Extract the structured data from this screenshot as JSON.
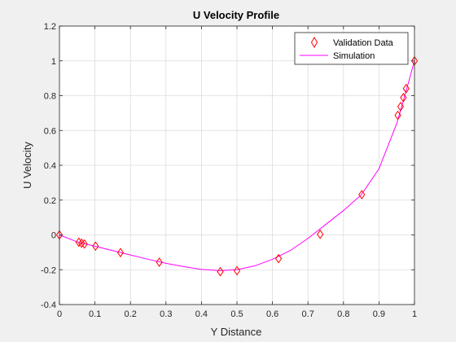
{
  "chart_data": {
    "type": "line",
    "title": "U Velocity Profile",
    "xlabel": "Y Distance",
    "ylabel": "U Velocity",
    "xlim": [
      0,
      1
    ],
    "ylim": [
      -0.4,
      1.2
    ],
    "xticks": [
      0,
      0.1,
      0.2,
      0.3,
      0.4,
      0.5,
      0.6,
      0.7,
      0.8,
      0.9,
      1
    ],
    "xtick_labels": [
      "0",
      "0.1",
      "0.2",
      "0.3",
      "0.4",
      "0.5",
      "0.6",
      "0.7",
      "0.8",
      "0.9",
      "1"
    ],
    "yticks": [
      -0.4,
      -0.2,
      0,
      0.2,
      0.4,
      0.6,
      0.8,
      1,
      1.2
    ],
    "ytick_labels": [
      "-0.4",
      "-0.2",
      "0",
      "0.2",
      "0.4",
      "0.6",
      "0.8",
      "1",
      "1.2"
    ],
    "grid": true,
    "legend_position": "top-right",
    "series": [
      {
        "name": "Validation Data",
        "style": "markers",
        "marker": "diamond",
        "color": "#ff0000",
        "x": [
          0,
          0.0547,
          0.0625,
          0.0703,
          0.1016,
          0.1719,
          0.2813,
          0.4531,
          0.5,
          0.6172,
          0.7344,
          0.8516,
          0.9531,
          0.9609,
          0.9688,
          0.9766,
          1
        ],
        "y": [
          0,
          -0.0419,
          -0.0477,
          -0.052,
          -0.0643,
          -0.1015,
          -0.1566,
          -0.2109,
          -0.2058,
          -0.1364,
          0.0033,
          0.2315,
          0.6872,
          0.7372,
          0.7887,
          0.8412,
          1
        ]
      },
      {
        "name": "Simulation",
        "style": "line",
        "color": "#ff00ff",
        "x": [
          0,
          0.05,
          0.1,
          0.15,
          0.2,
          0.25,
          0.3,
          0.35,
          0.4,
          0.45,
          0.5,
          0.55,
          0.6,
          0.65,
          0.7,
          0.75,
          0.8,
          0.85,
          0.9,
          0.95,
          0.97,
          1
        ],
        "y": [
          0,
          -0.04,
          -0.065,
          -0.09,
          -0.115,
          -0.14,
          -0.163,
          -0.182,
          -0.198,
          -0.205,
          -0.2,
          -0.178,
          -0.14,
          -0.09,
          -0.02,
          0.06,
          0.14,
          0.23,
          0.38,
          0.64,
          0.78,
          1
        ]
      }
    ]
  }
}
